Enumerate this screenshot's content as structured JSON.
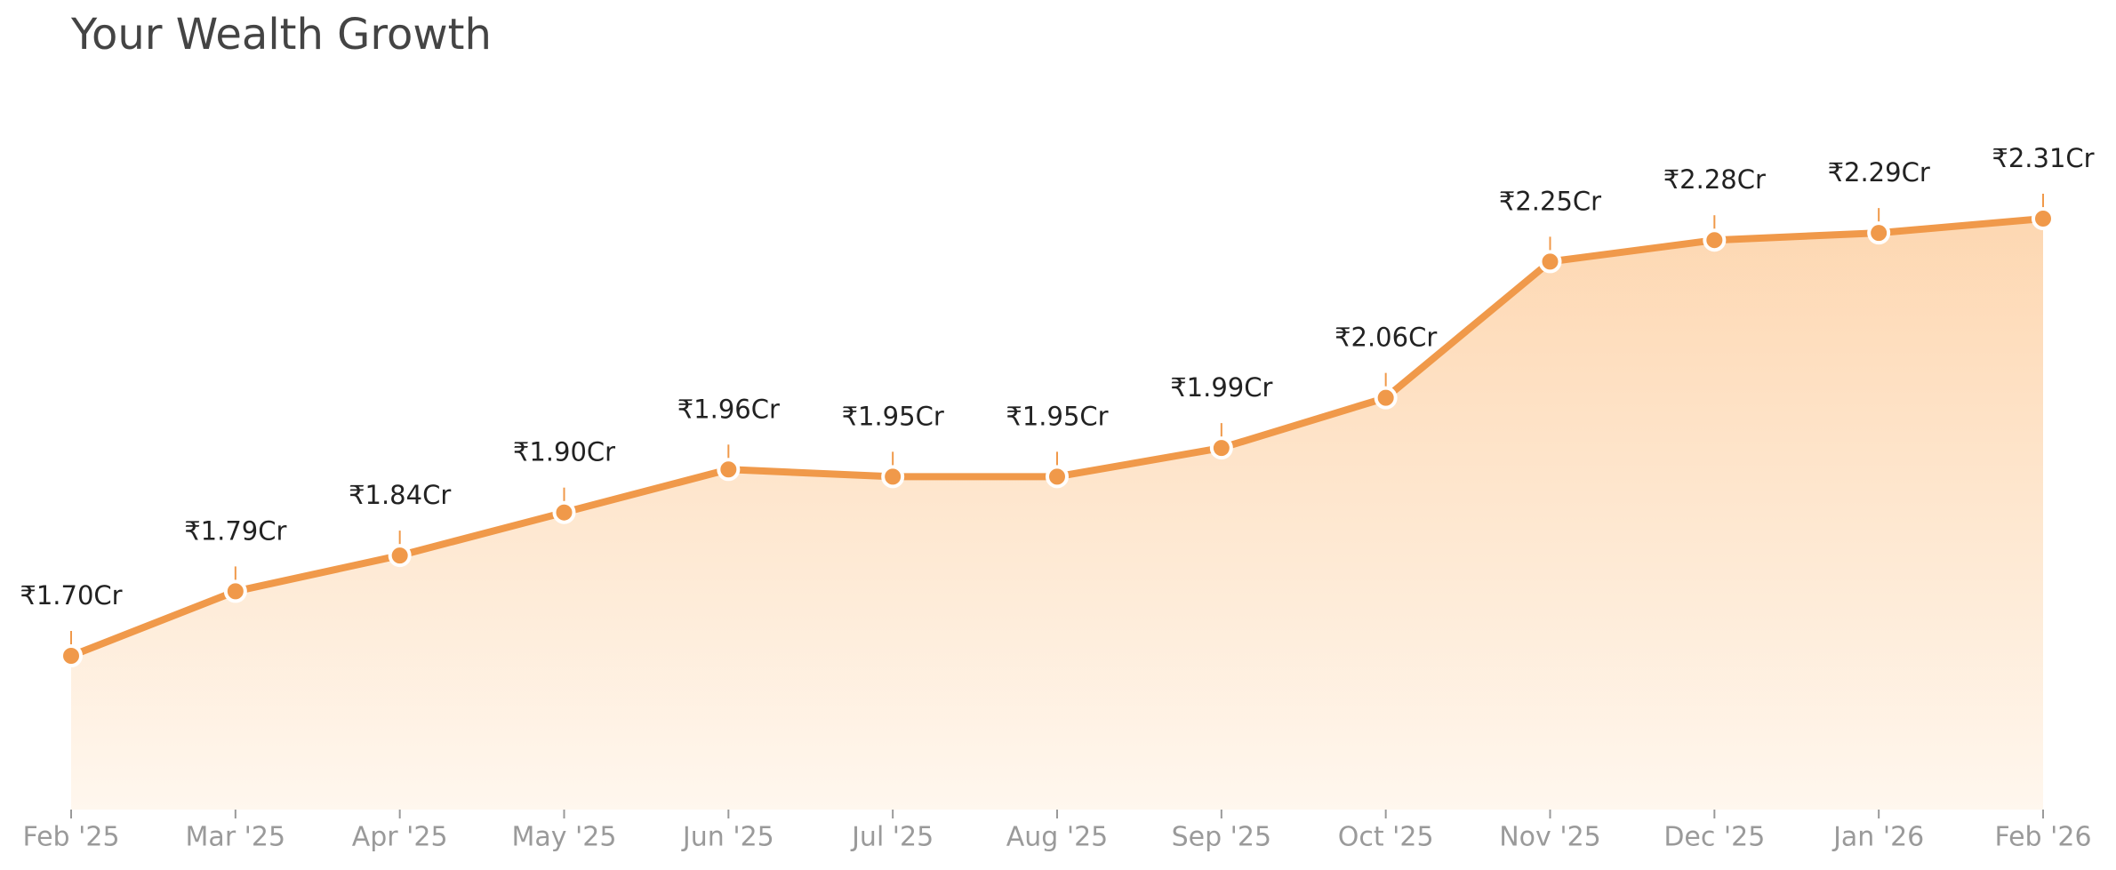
{
  "chart_data": {
    "type": "area",
    "title": "Your Wealth Growth",
    "categories": [
      "Feb '25",
      "Mar '25",
      "Apr '25",
      "May '25",
      "Jun '25",
      "Jul '25",
      "Aug '25",
      "Sep '25",
      "Oct '25",
      "Nov '25",
      "Dec '25",
      "Jan '26",
      "Feb '26"
    ],
    "values": [
      1.7,
      1.79,
      1.84,
      1.9,
      1.96,
      1.95,
      1.95,
      1.99,
      2.06,
      2.25,
      2.28,
      2.29,
      2.31
    ],
    "value_labels": [
      "₹1.70Cr",
      "₹1.79Cr",
      "₹1.84Cr",
      "₹1.90Cr",
      "₹1.96Cr",
      "₹1.95Cr",
      "₹1.95Cr",
      "₹1.99Cr",
      "₹2.06Cr",
      "₹2.25Cr",
      "₹2.28Cr",
      "₹2.29Cr",
      "₹2.31Cr"
    ],
    "color": "#f0994a"
  }
}
